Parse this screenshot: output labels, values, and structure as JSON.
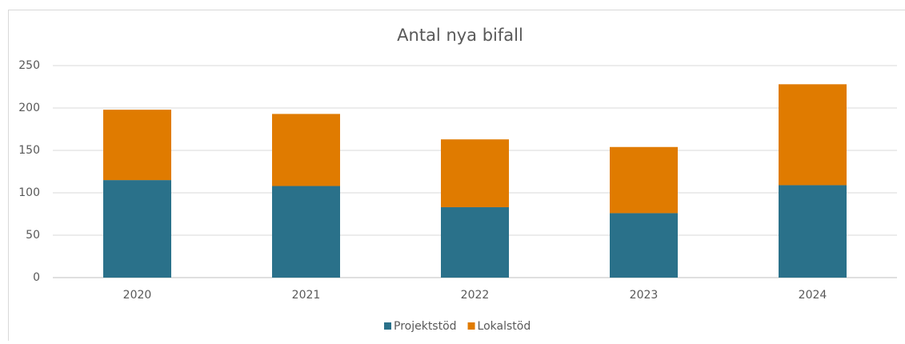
{
  "chart_data": {
    "type": "stacked_bar",
    "title": "Antal nya bifall",
    "categories": [
      "2020",
      "2021",
      "2022",
      "2023",
      "2024"
    ],
    "series": [
      {
        "name": "Projektstöd",
        "color": "#2a718a",
        "values": [
          115,
          108,
          83,
          76,
          109
        ]
      },
      {
        "name": "Lokalstöd",
        "color": "#e07b00",
        "values": [
          83,
          85,
          80,
          78,
          119
        ]
      }
    ],
    "ylim": [
      0,
      250
    ],
    "yticks": [
      0,
      50,
      100,
      150,
      200,
      250
    ],
    "grid": true,
    "legend": "bottom"
  }
}
